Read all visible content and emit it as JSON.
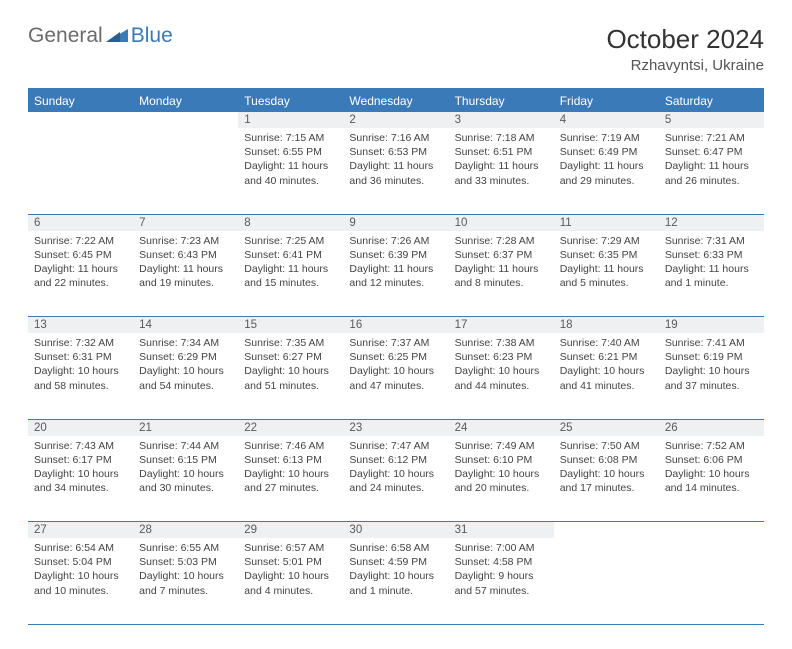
{
  "logo": {
    "part1": "General",
    "part2": "Blue"
  },
  "title": "October 2024",
  "location": "Rzhavyntsi, Ukraine",
  "colors": {
    "header_bg": "#3b7ab8",
    "header_text": "#ffffff",
    "daynum_bg": "#eef0f2",
    "border": "#3b7ab8",
    "logo_gray": "#6b6b6b",
    "logo_blue": "#3b7ab8"
  },
  "dayHeaders": [
    "Sunday",
    "Monday",
    "Tuesday",
    "Wednesday",
    "Thursday",
    "Friday",
    "Saturday"
  ],
  "weeks": [
    [
      null,
      null,
      {
        "n": "1",
        "sunrise": "7:15 AM",
        "sunset": "6:55 PM",
        "daylight": "11 hours and 40 minutes."
      },
      {
        "n": "2",
        "sunrise": "7:16 AM",
        "sunset": "6:53 PM",
        "daylight": "11 hours and 36 minutes."
      },
      {
        "n": "3",
        "sunrise": "7:18 AM",
        "sunset": "6:51 PM",
        "daylight": "11 hours and 33 minutes."
      },
      {
        "n": "4",
        "sunrise": "7:19 AM",
        "sunset": "6:49 PM",
        "daylight": "11 hours and 29 minutes."
      },
      {
        "n": "5",
        "sunrise": "7:21 AM",
        "sunset": "6:47 PM",
        "daylight": "11 hours and 26 minutes."
      }
    ],
    [
      {
        "n": "6",
        "sunrise": "7:22 AM",
        "sunset": "6:45 PM",
        "daylight": "11 hours and 22 minutes."
      },
      {
        "n": "7",
        "sunrise": "7:23 AM",
        "sunset": "6:43 PM",
        "daylight": "11 hours and 19 minutes."
      },
      {
        "n": "8",
        "sunrise": "7:25 AM",
        "sunset": "6:41 PM",
        "daylight": "11 hours and 15 minutes."
      },
      {
        "n": "9",
        "sunrise": "7:26 AM",
        "sunset": "6:39 PM",
        "daylight": "11 hours and 12 minutes."
      },
      {
        "n": "10",
        "sunrise": "7:28 AM",
        "sunset": "6:37 PM",
        "daylight": "11 hours and 8 minutes."
      },
      {
        "n": "11",
        "sunrise": "7:29 AM",
        "sunset": "6:35 PM",
        "daylight": "11 hours and 5 minutes."
      },
      {
        "n": "12",
        "sunrise": "7:31 AM",
        "sunset": "6:33 PM",
        "daylight": "11 hours and 1 minute."
      }
    ],
    [
      {
        "n": "13",
        "sunrise": "7:32 AM",
        "sunset": "6:31 PM",
        "daylight": "10 hours and 58 minutes."
      },
      {
        "n": "14",
        "sunrise": "7:34 AM",
        "sunset": "6:29 PM",
        "daylight": "10 hours and 54 minutes."
      },
      {
        "n": "15",
        "sunrise": "7:35 AM",
        "sunset": "6:27 PM",
        "daylight": "10 hours and 51 minutes."
      },
      {
        "n": "16",
        "sunrise": "7:37 AM",
        "sunset": "6:25 PM",
        "daylight": "10 hours and 47 minutes."
      },
      {
        "n": "17",
        "sunrise": "7:38 AM",
        "sunset": "6:23 PM",
        "daylight": "10 hours and 44 minutes."
      },
      {
        "n": "18",
        "sunrise": "7:40 AM",
        "sunset": "6:21 PM",
        "daylight": "10 hours and 41 minutes."
      },
      {
        "n": "19",
        "sunrise": "7:41 AM",
        "sunset": "6:19 PM",
        "daylight": "10 hours and 37 minutes."
      }
    ],
    [
      {
        "n": "20",
        "sunrise": "7:43 AM",
        "sunset": "6:17 PM",
        "daylight": "10 hours and 34 minutes."
      },
      {
        "n": "21",
        "sunrise": "7:44 AM",
        "sunset": "6:15 PM",
        "daylight": "10 hours and 30 minutes."
      },
      {
        "n": "22",
        "sunrise": "7:46 AM",
        "sunset": "6:13 PM",
        "daylight": "10 hours and 27 minutes."
      },
      {
        "n": "23",
        "sunrise": "7:47 AM",
        "sunset": "6:12 PM",
        "daylight": "10 hours and 24 minutes."
      },
      {
        "n": "24",
        "sunrise": "7:49 AM",
        "sunset": "6:10 PM",
        "daylight": "10 hours and 20 minutes."
      },
      {
        "n": "25",
        "sunrise": "7:50 AM",
        "sunset": "6:08 PM",
        "daylight": "10 hours and 17 minutes."
      },
      {
        "n": "26",
        "sunrise": "7:52 AM",
        "sunset": "6:06 PM",
        "daylight": "10 hours and 14 minutes."
      }
    ],
    [
      {
        "n": "27",
        "sunrise": "6:54 AM",
        "sunset": "5:04 PM",
        "daylight": "10 hours and 10 minutes."
      },
      {
        "n": "28",
        "sunrise": "6:55 AM",
        "sunset": "5:03 PM",
        "daylight": "10 hours and 7 minutes."
      },
      {
        "n": "29",
        "sunrise": "6:57 AM",
        "sunset": "5:01 PM",
        "daylight": "10 hours and 4 minutes."
      },
      {
        "n": "30",
        "sunrise": "6:58 AM",
        "sunset": "4:59 PM",
        "daylight": "10 hours and 1 minute."
      },
      {
        "n": "31",
        "sunrise": "7:00 AM",
        "sunset": "4:58 PM",
        "daylight": "9 hours and 57 minutes."
      },
      null,
      null
    ]
  ],
  "labels": {
    "sunrise": "Sunrise:",
    "sunset": "Sunset:",
    "daylight": "Daylight:"
  }
}
